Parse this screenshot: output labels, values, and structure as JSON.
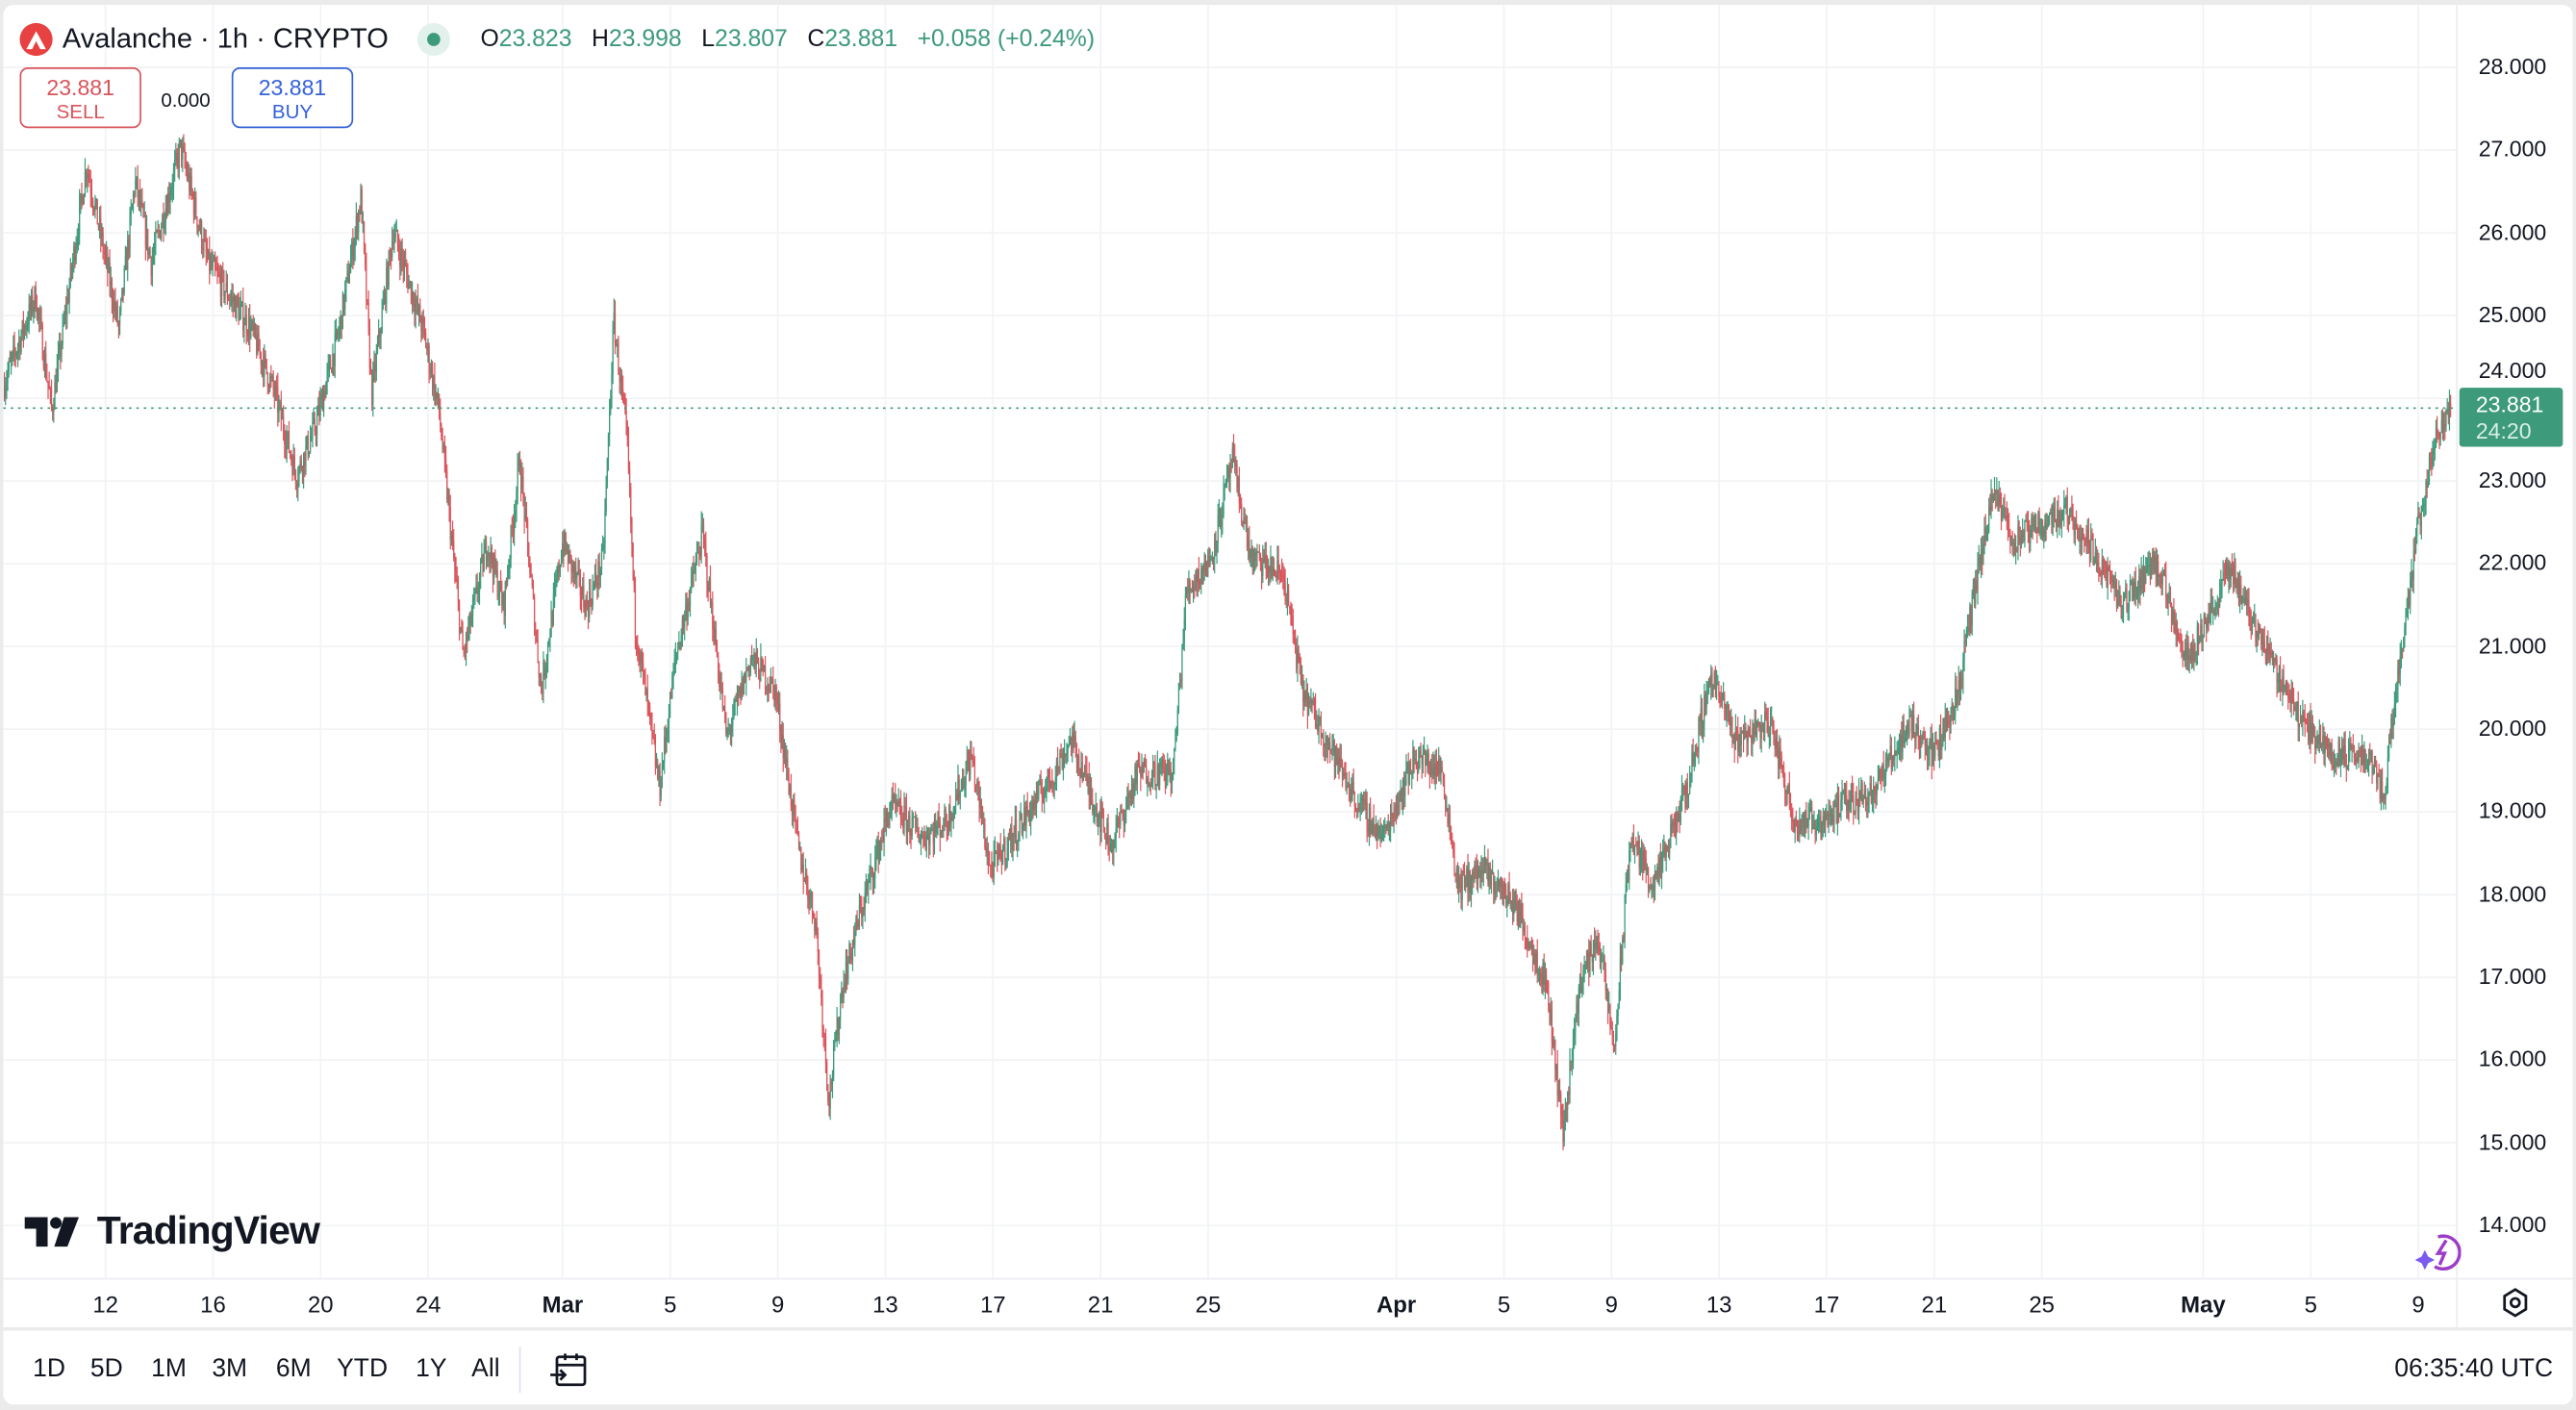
{
  "header": {
    "symbol_title": "Avalanche · 1h · CRYPTO",
    "ohlc": {
      "o_label": "O",
      "o": "23.823",
      "h_label": "H",
      "h": "23.998",
      "l_label": "L",
      "l": "23.807",
      "c_label": "C",
      "c": "23.881",
      "change": "+0.058 (+0.24%)"
    }
  },
  "trade": {
    "sell_price": "23.881",
    "sell_label": "SELL",
    "spread": "0.000",
    "buy_price": "23.881",
    "buy_label": "BUY"
  },
  "current_price": {
    "price": "23.881",
    "countdown": "24:20"
  },
  "branding": {
    "logo_text": "TradingView"
  },
  "bottom_bar": {
    "ranges": [
      "1D",
      "5D",
      "1M",
      "3M",
      "6M",
      "YTD",
      "1Y",
      "All"
    ],
    "clock": "06:35:40 UTC"
  },
  "icons": [
    "avalanche-logo-icon",
    "market-open-dot-icon",
    "tradingview-logo-icon",
    "assistant-spark-icon",
    "settings-gear-icon",
    "go-to-date-calendar-icon"
  ],
  "colors": {
    "up": "#3d9a7a",
    "down": "#d9545b",
    "sell": "#d9545b",
    "buy": "#3461d8",
    "grid": "#f2f3f5"
  },
  "chart_data": {
    "type": "candlestick",
    "title": "Avalanche · 1h · CRYPTO",
    "interval": "1h",
    "ylim": [
      14,
      28
    ],
    "y_ticks": [
      "28.000",
      "27.000",
      "26.000",
      "25.000",
      "24.000",
      "23.000",
      "22.000",
      "21.000",
      "20.000",
      "19.000",
      "18.000",
      "17.000",
      "16.000",
      "15.000",
      "14.000"
    ],
    "y_tick_values": [
      28,
      27,
      26,
      25,
      24,
      23,
      22,
      21,
      20,
      19,
      18,
      17,
      16,
      15,
      14
    ],
    "x_ticks": [
      {
        "label": "12",
        "t": 3.8
      },
      {
        "label": "16",
        "t": 7.8
      },
      {
        "label": "20",
        "t": 11.8
      },
      {
        "label": "24",
        "t": 15.8
      },
      {
        "label": "Mar",
        "t": 20.8,
        "bold": true
      },
      {
        "label": "5",
        "t": 24.8
      },
      {
        "label": "9",
        "t": 28.8
      },
      {
        "label": "13",
        "t": 32.8
      },
      {
        "label": "17",
        "t": 36.8
      },
      {
        "label": "21",
        "t": 40.8
      },
      {
        "label": "25",
        "t": 44.8
      },
      {
        "label": "Apr",
        "t": 51.8,
        "bold": true
      },
      {
        "label": "5",
        "t": 55.8
      },
      {
        "label": "9",
        "t": 59.8
      },
      {
        "label": "13",
        "t": 63.8
      },
      {
        "label": "17",
        "t": 67.8
      },
      {
        "label": "21",
        "t": 71.8
      },
      {
        "label": "25",
        "t": 75.8
      },
      {
        "label": "May",
        "t": 81.8,
        "bold": true
      },
      {
        "label": "5",
        "t": 85.8
      },
      {
        "label": "9",
        "t": 89.8
      }
    ],
    "x_unit": "days since series start (~Feb 8)",
    "price_path": [
      [
        0,
        24.15
      ],
      [
        1.2,
        25.24
      ],
      [
        1.8,
        23.85
      ],
      [
        3.1,
        26.83
      ],
      [
        4.3,
        24.84
      ],
      [
        4.9,
        26.63
      ],
      [
        5.5,
        25.64
      ],
      [
        6.6,
        27.03
      ],
      [
        7.6,
        25.64
      ],
      [
        9.2,
        24.84
      ],
      [
        10.1,
        24.05
      ],
      [
        10.9,
        23.06
      ],
      [
        11.6,
        23.65
      ],
      [
        12.5,
        24.84
      ],
      [
        13.3,
        26.43
      ],
      [
        13.7,
        24.05
      ],
      [
        14.5,
        26.03
      ],
      [
        15.6,
        24.84
      ],
      [
        16.2,
        23.85
      ],
      [
        17.1,
        20.87
      ],
      [
        18.0,
        22.26
      ],
      [
        18.6,
        21.47
      ],
      [
        19.2,
        23.25
      ],
      [
        20.0,
        20.47
      ],
      [
        20.8,
        22.26
      ],
      [
        21.7,
        21.47
      ],
      [
        22.3,
        22.06
      ],
      [
        22.7,
        24.94
      ],
      [
        23.2,
        23.45
      ],
      [
        23.5,
        21.27
      ],
      [
        24.4,
        19.28
      ],
      [
        25.0,
        20.87
      ],
      [
        26.0,
        22.36
      ],
      [
        26.9,
        19.88
      ],
      [
        27.8,
        20.87
      ],
      [
        28.7,
        20.47
      ],
      [
        29.6,
        18.49
      ],
      [
        30.2,
        17.69
      ],
      [
        30.7,
        15.51
      ],
      [
        31.2,
        16.9
      ],
      [
        31.8,
        17.69
      ],
      [
        33.0,
        19.08
      ],
      [
        34.2,
        18.69
      ],
      [
        35.1,
        18.89
      ],
      [
        36.0,
        19.68
      ],
      [
        36.7,
        18.29
      ],
      [
        37.9,
        18.89
      ],
      [
        39.1,
        19.48
      ],
      [
        39.7,
        19.88
      ],
      [
        40.6,
        19.08
      ],
      [
        41.2,
        18.59
      ],
      [
        42.2,
        19.48
      ],
      [
        43.5,
        19.48
      ],
      [
        44.0,
        21.67
      ],
      [
        44.9,
        22.06
      ],
      [
        45.7,
        23.25
      ],
      [
        46.4,
        22.06
      ],
      [
        47.6,
        21.86
      ],
      [
        48.3,
        20.47
      ],
      [
        49.2,
        19.88
      ],
      [
        50.4,
        19.08
      ],
      [
        51.3,
        18.69
      ],
      [
        52.5,
        19.68
      ],
      [
        53.5,
        19.48
      ],
      [
        54.1,
        18.09
      ],
      [
        55.0,
        18.29
      ],
      [
        56.2,
        17.89
      ],
      [
        57.4,
        16.9
      ],
      [
        58.0,
        15.11
      ],
      [
        58.6,
        16.9
      ],
      [
        59.3,
        17.5
      ],
      [
        59.9,
        16.11
      ],
      [
        60.5,
        18.69
      ],
      [
        61.4,
        18.09
      ],
      [
        62.6,
        19.28
      ],
      [
        63.5,
        20.67
      ],
      [
        64.4,
        19.88
      ],
      [
        65.7,
        20.08
      ],
      [
        66.6,
        18.89
      ],
      [
        67.5,
        18.89
      ],
      [
        68.4,
        19.08
      ],
      [
        69.6,
        19.28
      ],
      [
        70.9,
        20.08
      ],
      [
        71.8,
        19.68
      ],
      [
        72.7,
        20.47
      ],
      [
        73.3,
        21.67
      ],
      [
        74.0,
        22.86
      ],
      [
        74.8,
        22.26
      ],
      [
        75.7,
        22.46
      ],
      [
        76.7,
        22.66
      ],
      [
        77.9,
        22.06
      ],
      [
        78.8,
        21.47
      ],
      [
        80.0,
        22.06
      ],
      [
        81.2,
        20.87
      ],
      [
        82.2,
        21.47
      ],
      [
        82.8,
        21.96
      ],
      [
        83.7,
        21.27
      ],
      [
        84.6,
        20.67
      ],
      [
        85.5,
        20.08
      ],
      [
        86.7,
        19.68
      ],
      [
        88.0,
        19.68
      ],
      [
        88.5,
        19.18
      ],
      [
        89.2,
        21.07
      ],
      [
        89.8,
        22.46
      ],
      [
        90.4,
        23.45
      ],
      [
        91.0,
        23.881
      ]
    ],
    "last": {
      "open": 23.823,
      "high": 23.998,
      "low": 23.807,
      "close": 23.881
    }
  }
}
